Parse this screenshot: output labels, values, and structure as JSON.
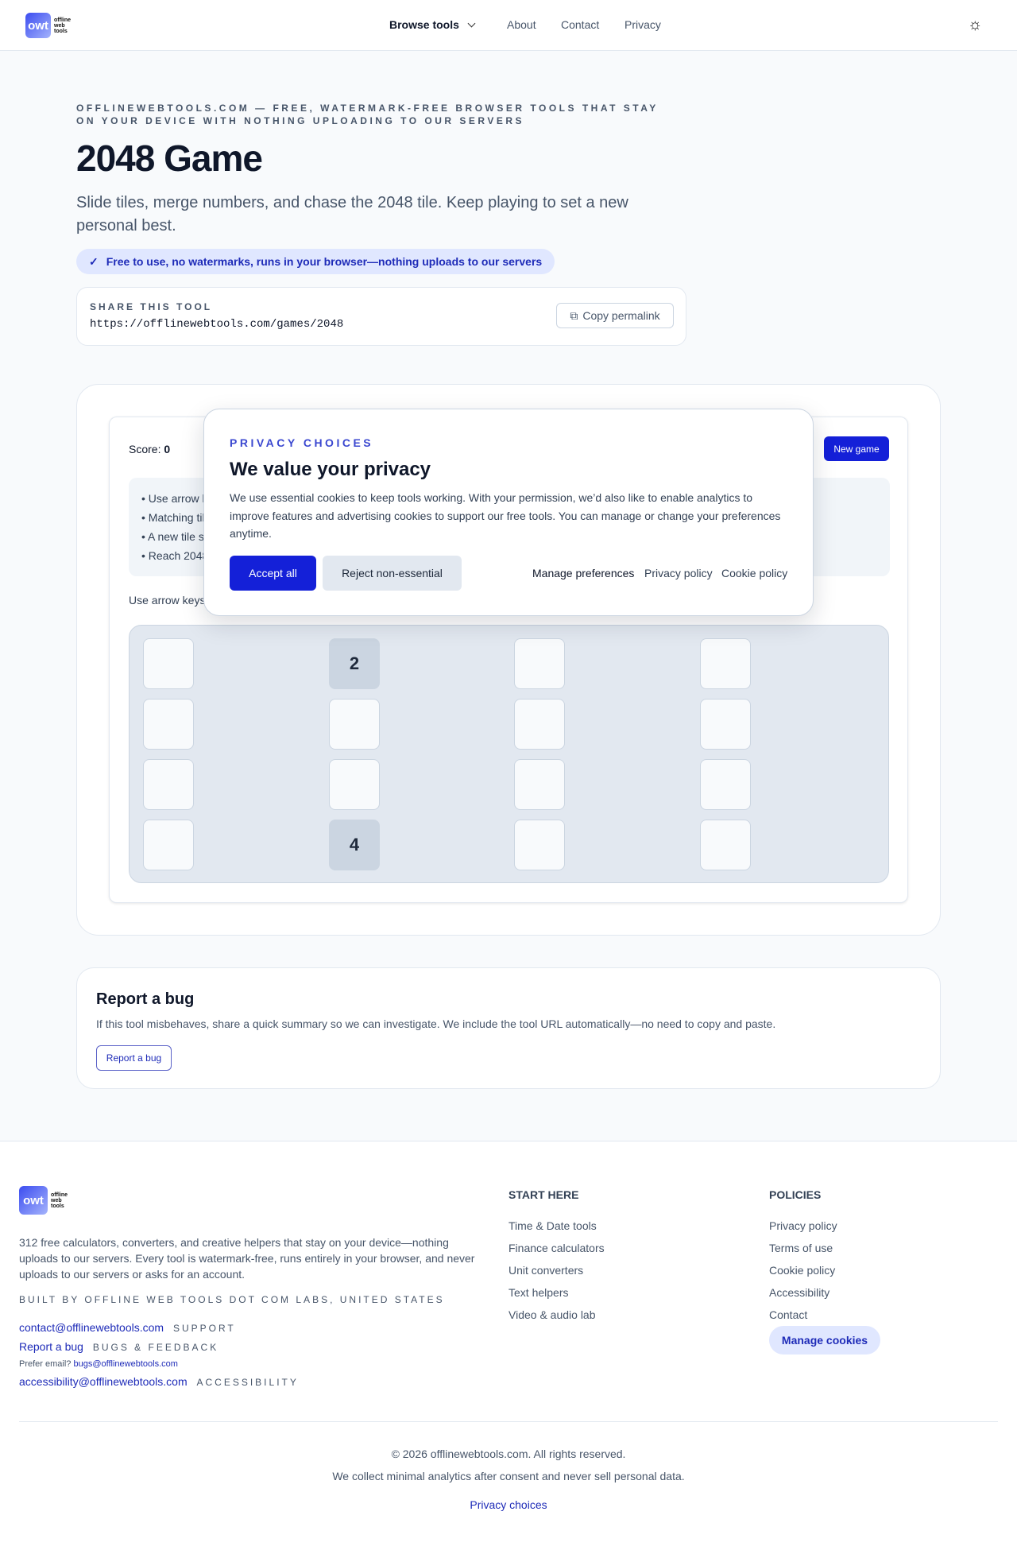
{
  "header": {
    "logo_mark": "owt",
    "logo_words": [
      "offline",
      "web",
      "tools"
    ],
    "nav": [
      "Browse tools",
      "About",
      "Contact",
      "Privacy"
    ],
    "theme_icon": "sun-icon"
  },
  "hero": {
    "eyebrow": "OFFLINEWEBTOOLS.COM — FREE, WATERMARK-FREE BROWSER TOOLS THAT STAY ON YOUR DEVICE WITH NOTHING UPLOADING TO OUR SERVERS",
    "title": "2048 Game",
    "subtitle": "Slide tiles, merge numbers, and chase the 2048 tile. Keep playing to set a new personal best.",
    "badge": "Free to use, no watermarks, runs in your browser—nothing uploads to our servers"
  },
  "share": {
    "label": "SHARE THIS TOOL",
    "url": "https://offlinewebtools.com/games/2048",
    "copy": "Copy permalink"
  },
  "game": {
    "score_label": "Score:",
    "score": "0",
    "new_game": "New game",
    "instructions": [
      "• Use arrow k",
      "• Matching til",
      "• A new tile s",
      "• Reach 2048"
    ],
    "hint": "Use arrow keys",
    "board": [
      [
        "",
        "2",
        "",
        ""
      ],
      [
        "",
        "",
        "",
        ""
      ],
      [
        "",
        "",
        "",
        ""
      ],
      [
        "",
        "4",
        "",
        ""
      ]
    ]
  },
  "modal": {
    "eyebrow": "PRIVACY CHOICES",
    "title": "We value your privacy",
    "body": "We use essential cookies to keep tools working. With your permission, we’d also like to enable analytics to improve features and advertising cookies to support our free tools. You can manage or change your preferences anytime.",
    "accept": "Accept all",
    "reject": "Reject non-essential",
    "links": [
      "Manage preferences",
      "Privacy policy",
      "Cookie policy"
    ]
  },
  "bug": {
    "title": "Report a bug",
    "text": "If this tool misbehaves, share a quick summary so we can investigate. We include the tool URL automatically—no need to copy and paste.",
    "button": "Report a bug"
  },
  "footer": {
    "about": "312 free calculators, converters, and creative helpers that stay on your device—nothing uploads to our servers. Every tool is watermark-free, runs entirely in your browser, and never uploads to our servers or asks for an account.",
    "built": "BUILT BY OFFLINE WEB TOOLS DOT COM LABS, UNITED STATES",
    "contact_email": "contact@offlinewebtools.com",
    "support": "SUPPORT",
    "report": "Report a bug",
    "bugs_feedback": "BUGS & FEEDBACK",
    "prefer": "Prefer email?",
    "bugs_email": "bugs@offlinewebtools.com",
    "a11y_email": "accessibility@offlinewebtools.com",
    "a11y": "ACCESSIBILITY",
    "start_title": "START HERE",
    "start": [
      "Time & Date tools",
      "Finance calculators",
      "Unit converters",
      "Text helpers",
      "Video & audio lab"
    ],
    "policies_title": "POLICIES",
    "policies": [
      "Privacy policy",
      "Terms of use",
      "Cookie policy",
      "Accessibility",
      "Contact"
    ],
    "manage_cookies": "Manage cookies",
    "copyright": "© 2026 offlinewebtools.com. All rights reserved.",
    "analytics": "We collect minimal analytics after consent and never sell personal data.",
    "privacy_choices": "Privacy choices"
  }
}
